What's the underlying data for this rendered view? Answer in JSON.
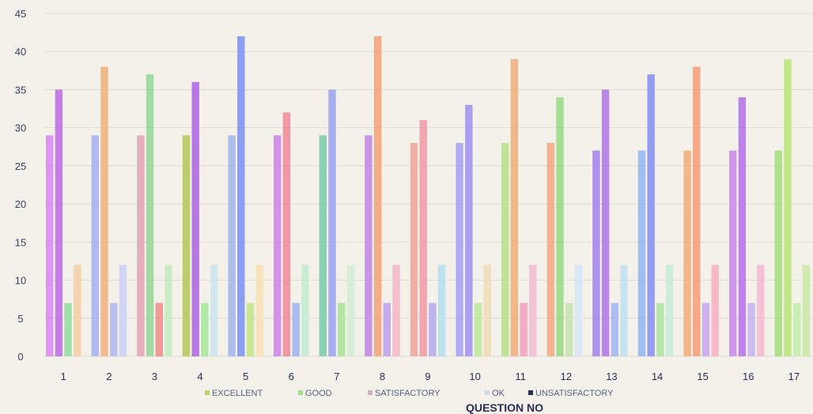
{
  "chart_data": {
    "type": "bar",
    "title": "",
    "xlabel": "QUESTION NO",
    "ylabel": "",
    "ylim": [
      0,
      45
    ],
    "yticks": [
      0,
      5,
      10,
      15,
      20,
      25,
      30,
      35,
      40,
      45
    ],
    "grid": true,
    "legend_position": "bottom",
    "categories": [
      "1",
      "2",
      "3",
      "4",
      "5",
      "6",
      "7",
      "8",
      "9",
      "10",
      "11",
      "12",
      "13",
      "14",
      "15",
      "16",
      "17"
    ],
    "series": [
      {
        "name": "EXCELLENT",
        "values": [
          29,
          29,
          29,
          29,
          29,
          29,
          29,
          29,
          28,
          28,
          28,
          28,
          27,
          27,
          27,
          27,
          27
        ]
      },
      {
        "name": "GOOD",
        "values": [
          35,
          38,
          37,
          36,
          42,
          32,
          35,
          42,
          31,
          33,
          39,
          34,
          35,
          37,
          38,
          34,
          39
        ]
      },
      {
        "name": "SATISFACTORY",
        "values": [
          7,
          7,
          7,
          7,
          7,
          7,
          7,
          7,
          7,
          7,
          7,
          7,
          7,
          7,
          7,
          7,
          7
        ]
      },
      {
        "name": "OK",
        "values": [
          12,
          12,
          12,
          12,
          12,
          12,
          12,
          12,
          12,
          12,
          12,
          12,
          12,
          12,
          12,
          12,
          12
        ]
      },
      {
        "name": "UNSATISFACTORY",
        "values": [
          0,
          0,
          0,
          0,
          0,
          0,
          0,
          0,
          0,
          0,
          0,
          0,
          0,
          0,
          0,
          0,
          0
        ]
      }
    ],
    "bar_colors": [
      [
        "#d98cf0",
        "#c070e6",
        "#96e0a0",
        "#f3d0a8"
      ],
      [
        "#a8b3f2",
        "#f0b582",
        "#b7b9f0",
        "#cdd3f5"
      ],
      [
        "#e2a6b8",
        "#9ad79a",
        "#ee8f8f",
        "#c8ecc0"
      ],
      [
        "#b7c95e",
        "#b06ae4",
        "#a9e8a0",
        "#cde5f0"
      ],
      [
        "#a3b8ee",
        "#7f96f0",
        "#c4e58a",
        "#f7e0b6"
      ],
      [
        "#cf87e6",
        "#f08d9c",
        "#a1b6ef",
        "#c4ecd0"
      ],
      [
        "#7dcfae",
        "#9fa5ee",
        "#aee39a",
        "#d4edd4"
      ],
      [
        "#c58be8",
        "#f5a57c",
        "#c1a2ee",
        "#f3b8cb"
      ],
      [
        "#f0a8a0",
        "#f09ca8",
        "#b8aef0",
        "#b7e0f0"
      ],
      [
        "#a9a4f2",
        "#a496f0",
        "#c0e99f",
        "#f1dbb8"
      ],
      [
        "#b9e08c",
        "#f0b07f",
        "#f4a3bf",
        "#f3bcd6"
      ],
      [
        "#f5a985",
        "#9bd98a",
        "#c8e3b2",
        "#d7e6f5"
      ],
      [
        "#a586ec",
        "#b27be6",
        "#a4b7ef",
        "#c4e2f2"
      ],
      [
        "#93b8f2",
        "#8c93f2",
        "#b0e6a6",
        "#c6ecd8"
      ],
      [
        "#f5b07e",
        "#f6a07c",
        "#c9a8f0",
        "#f7b3c3"
      ],
      [
        "#c98fe8",
        "#b877e8",
        "#c5b7f2",
        "#f4bcd1"
      ],
      [
        "#a6df7f",
        "#b9e67d",
        "#c4eeb0",
        "#cce9a7"
      ]
    ]
  },
  "legend": {
    "items": [
      {
        "label": "EXCELLENT",
        "color": "#b9d46a"
      },
      {
        "label": "GOOD",
        "color": "#a2df86"
      },
      {
        "label": "SATISFACTORY",
        "color": "#d4b3b8"
      },
      {
        "label": "OK",
        "color": "#d2dbe8"
      },
      {
        "label": "UNSATISFACTORY",
        "color": "#2a2d55"
      }
    ]
  }
}
